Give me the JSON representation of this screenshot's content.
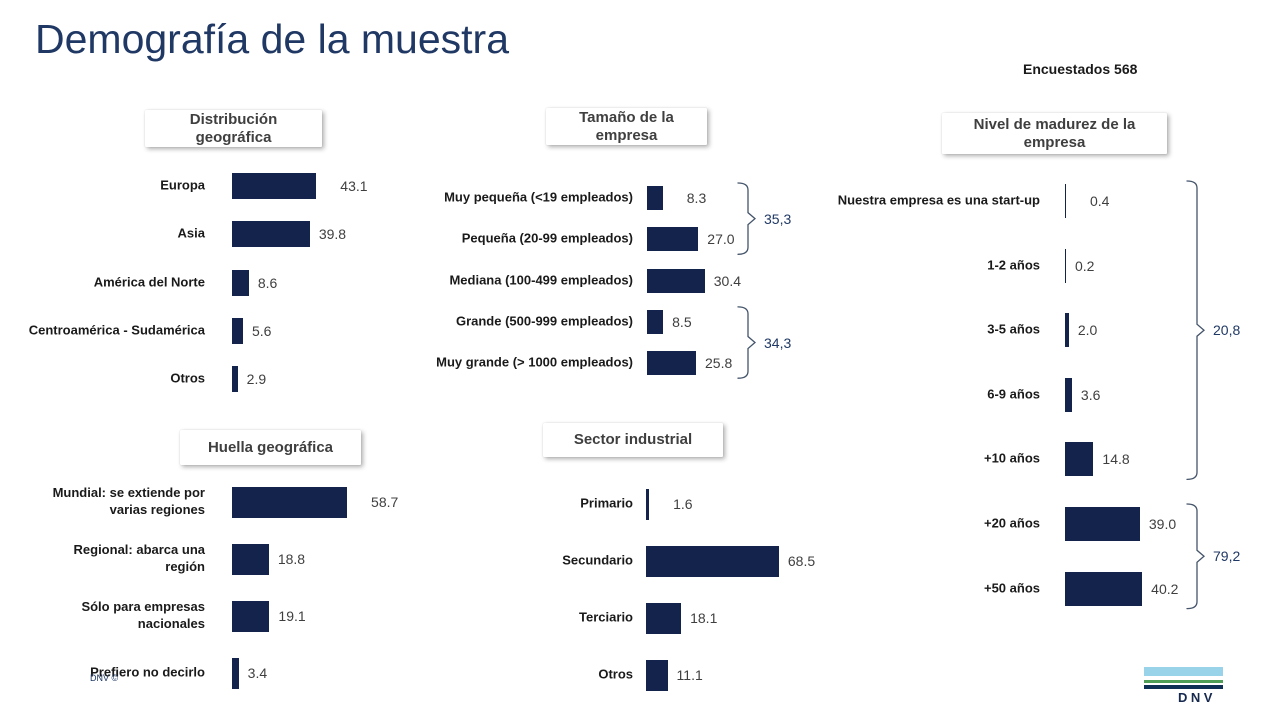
{
  "slide": {
    "title": "Demografía de la muestra",
    "respondents_label": "Encuestados 568",
    "footer_copyright": "DNV ©",
    "logo_text": "DNV"
  },
  "colors": {
    "bar": "#13234B",
    "title": "#203864",
    "category_label": "#1A1A1A",
    "value_label": "#3F3F3F",
    "header_text": "#3F3F3F",
    "bracket_line": "#44546A",
    "bracket_label": "#1F3864",
    "logo_lightblue": "#99D3EA",
    "logo_green": "#4F9E58",
    "logo_navy": "#0E2F55",
    "logo_text_color": "#16294F"
  },
  "chart_data": [
    {
      "key": "geo",
      "type": "bar",
      "orientation": "horizontal",
      "title": "Distribución\ngeográfica",
      "categories": [
        "Europa",
        "Asia",
        "América del Norte",
        "Centroamérica - Sudamérica",
        "Otros"
      ],
      "values": [
        43.1,
        39.8,
        8.6,
        5.6,
        2.9
      ],
      "value_labels": [
        "43.1",
        "39.8",
        "8.6",
        "5.6",
        "2.9"
      ],
      "xlim": [
        0,
        100
      ],
      "grid": false
    },
    {
      "key": "size",
      "type": "bar",
      "orientation": "horizontal",
      "title": "Tamaño de la\nempresa",
      "categories": [
        "Muy pequeña (<19 empleados)",
        "Pequeña (20-99 empleados)",
        "Mediana (100-499 empleados)",
        "Grande (500-999 empleados)",
        "Muy grande (> 1000 empleados)"
      ],
      "values": [
        8.3,
        27.0,
        30.4,
        8.5,
        25.8
      ],
      "value_labels": [
        "8.3",
        "27.0",
        "30.4",
        "8.5",
        "25.8"
      ],
      "brackets": [
        {
          "from": 0,
          "to": 1,
          "label": "35,3"
        },
        {
          "from": 3,
          "to": 4,
          "label": "34,3"
        }
      ],
      "xlim": [
        0,
        100
      ],
      "grid": false
    },
    {
      "key": "maturity",
      "type": "bar",
      "orientation": "horizontal",
      "title": "Nivel de madurez de la\nempresa",
      "categories": [
        "Nuestra empresa es una start-up",
        "1-2 años",
        "3-5 años",
        "6-9 años",
        "+10 años",
        "+20 años",
        "+50 años"
      ],
      "values": [
        0.4,
        0.2,
        2.0,
        3.6,
        14.8,
        39.0,
        40.2
      ],
      "value_labels": [
        "0.4",
        "0.2",
        "2.0",
        "3.6",
        "14.8",
        "39.0",
        "40.2"
      ],
      "brackets": [
        {
          "from": 0,
          "to": 4,
          "label": "20,8"
        },
        {
          "from": 5,
          "to": 6,
          "label": "79,2"
        }
      ],
      "xlim": [
        0,
        100
      ],
      "grid": false
    },
    {
      "key": "footprint",
      "type": "bar",
      "orientation": "horizontal",
      "title": "Huella geográfica",
      "categories": [
        "Mundial: se extiende por\nvarias regiones",
        "Regional: abarca una\nregión",
        "Sólo para empresas\nnacionales",
        "Prefiero no decirlo"
      ],
      "values": [
        58.7,
        18.8,
        19.1,
        3.4
      ],
      "value_labels": [
        "58.7",
        "18.8",
        "19.1",
        "3.4"
      ],
      "xlim": [
        0,
        100
      ],
      "grid": false
    },
    {
      "key": "sector",
      "type": "bar",
      "orientation": "horizontal",
      "title": "Sector industrial",
      "categories": [
        "Primario",
        "Secundario",
        "Terciario",
        "Otros"
      ],
      "values": [
        1.6,
        68.5,
        18.1,
        11.1
      ],
      "value_labels": [
        "1.6",
        "68.5",
        "18.1",
        "11.1"
      ],
      "xlim": [
        0,
        100
      ],
      "grid": false
    }
  ]
}
